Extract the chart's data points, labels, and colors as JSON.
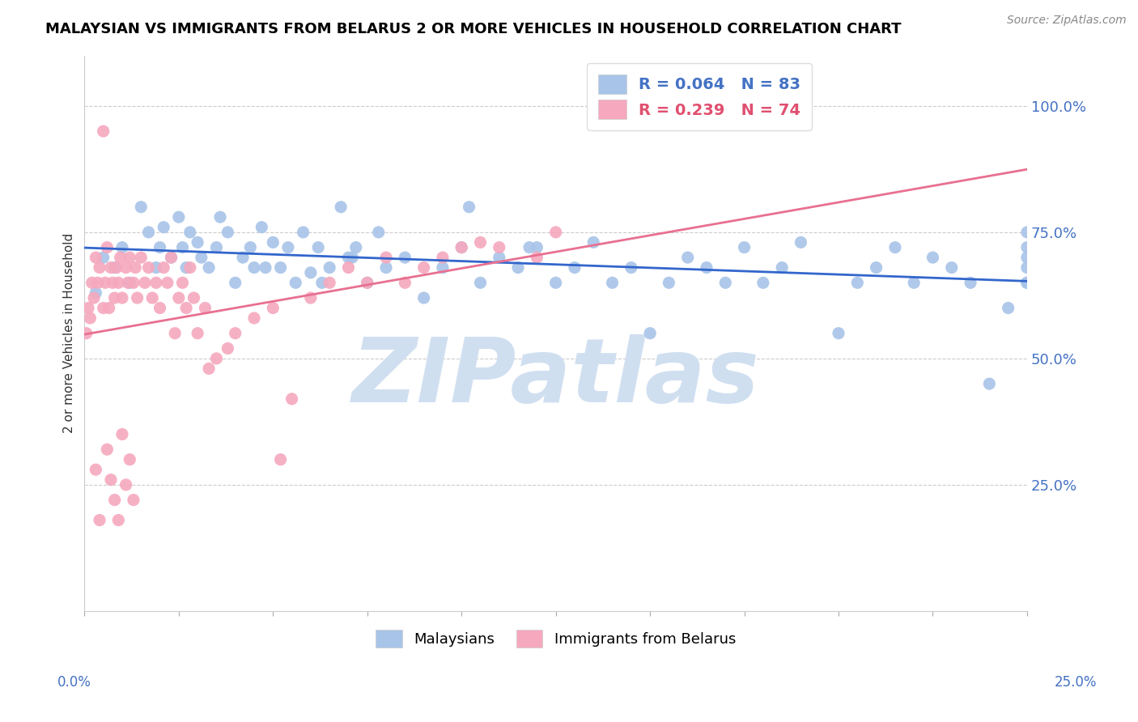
{
  "title": "MALAYSIAN VS IMMIGRANTS FROM BELARUS 2 OR MORE VEHICLES IN HOUSEHOLD CORRELATION CHART",
  "source": "Source: ZipAtlas.com",
  "ylabel": "2 or more Vehicles in Household",
  "x_min": 0.0,
  "x_max": 25.0,
  "y_min": 0.0,
  "y_max": 110.0,
  "y_ticks": [
    25.0,
    50.0,
    75.0,
    100.0
  ],
  "right_y_labels": [
    "25.0%",
    "50.0%",
    "75.0%",
    "100.0%"
  ],
  "legend_blue_label": "R = 0.064   N = 83",
  "legend_pink_label": "R = 0.239   N = 74",
  "legend_malaysians": "Malaysians",
  "legend_belarus": "Immigrants from Belarus",
  "blue_color": "#a8c4e8",
  "pink_color": "#f5a8be",
  "blue_line_color": "#3366cc",
  "pink_line_color": "#e87090",
  "watermark_text": "ZIPatlas",
  "watermark_color": "#d0dff0",
  "source_text": "Source: ZipAtlas.com",
  "blue_x": [
    0.3,
    0.5,
    0.8,
    1.0,
    1.2,
    1.5,
    1.7,
    1.9,
    2.0,
    2.1,
    2.3,
    2.5,
    2.6,
    2.7,
    2.8,
    3.0,
    3.1,
    3.3,
    3.5,
    3.6,
    3.8,
    4.0,
    4.2,
    4.4,
    4.5,
    4.7,
    5.0,
    5.2,
    5.4,
    5.6,
    5.8,
    6.0,
    6.2,
    6.5,
    6.8,
    7.0,
    7.2,
    7.5,
    7.8,
    8.0,
    8.5,
    9.0,
    9.5,
    10.0,
    10.5,
    11.0,
    11.5,
    12.0,
    12.5,
    13.0,
    13.5,
    14.0,
    14.5,
    15.0,
    15.5,
    16.0,
    16.5,
    17.0,
    17.5,
    18.0,
    18.5,
    19.0,
    20.0,
    20.5,
    21.0,
    21.5,
    22.0,
    22.5,
    23.0,
    23.5,
    24.0,
    24.5,
    25.0,
    25.0,
    25.0,
    25.0,
    25.0,
    25.0,
    4.8,
    6.3,
    7.1,
    10.2,
    11.8
  ],
  "blue_y": [
    63,
    70,
    68,
    72,
    65,
    80,
    75,
    68,
    72,
    76,
    70,
    78,
    72,
    68,
    75,
    73,
    70,
    68,
    72,
    78,
    75,
    65,
    70,
    72,
    68,
    76,
    73,
    68,
    72,
    65,
    75,
    67,
    72,
    68,
    80,
    70,
    72,
    65,
    75,
    68,
    70,
    62,
    68,
    72,
    65,
    70,
    68,
    72,
    65,
    68,
    73,
    65,
    68,
    55,
    65,
    70,
    68,
    65,
    72,
    65,
    68,
    73,
    55,
    65,
    68,
    72,
    65,
    70,
    68,
    65,
    45,
    60,
    65,
    70,
    72,
    68,
    65,
    75,
    68,
    65,
    70,
    80,
    72
  ],
  "pink_x": [
    0.05,
    0.1,
    0.15,
    0.2,
    0.25,
    0.3,
    0.35,
    0.4,
    0.5,
    0.55,
    0.6,
    0.65,
    0.7,
    0.75,
    0.8,
    0.85,
    0.9,
    0.95,
    1.0,
    1.1,
    1.15,
    1.2,
    1.3,
    1.35,
    1.4,
    1.5,
    1.6,
    1.7,
    1.8,
    1.9,
    2.0,
    2.1,
    2.2,
    2.3,
    2.4,
    2.5,
    2.6,
    2.7,
    2.8,
    2.9,
    3.0,
    3.2,
    3.5,
    3.8,
    4.0,
    4.5,
    5.0,
    5.5,
    6.0,
    6.5,
    7.0,
    7.5,
    8.0,
    8.5,
    9.0,
    9.5,
    10.0,
    10.5,
    11.0,
    12.0,
    12.5,
    5.2,
    3.3,
    0.3,
    0.4,
    0.5,
    0.6,
    0.7,
    0.8,
    0.9,
    1.0,
    1.1,
    1.2,
    1.3
  ],
  "pink_y": [
    55,
    60,
    58,
    65,
    62,
    70,
    65,
    68,
    60,
    65,
    72,
    60,
    68,
    65,
    62,
    68,
    65,
    70,
    62,
    68,
    65,
    70,
    65,
    68,
    62,
    70,
    65,
    68,
    62,
    65,
    60,
    68,
    65,
    70,
    55,
    62,
    65,
    60,
    68,
    62,
    55,
    60,
    50,
    52,
    55,
    58,
    60,
    42,
    62,
    65,
    68,
    65,
    70,
    65,
    68,
    70,
    72,
    73,
    72,
    70,
    75,
    30,
    48,
    28,
    18,
    95,
    32,
    26,
    22,
    18,
    35,
    25,
    30,
    22
  ]
}
